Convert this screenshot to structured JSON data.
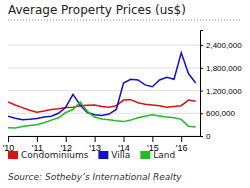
{
  "chart_data": {
    "type": "line",
    "title": "Average Property Prices (us$)",
    "source": "Source: Sotheby’s International Realty",
    "x": [
      2010.0,
      2010.25,
      2010.5,
      2010.75,
      2011.0,
      2011.25,
      2011.5,
      2011.75,
      2012.0,
      2012.25,
      2012.5,
      2012.75,
      2013.0,
      2013.25,
      2013.5,
      2013.75,
      2014.0,
      2014.25,
      2014.5,
      2014.75,
      2015.0,
      2015.25,
      2015.5,
      2015.75,
      2016.0,
      2016.25,
      2016.5
    ],
    "series": [
      {
        "name": "Condominiums",
        "color": "#dd1111",
        "values": [
          900000,
          820000,
          750000,
          680000,
          630000,
          660000,
          700000,
          720000,
          750000,
          760000,
          800000,
          810000,
          820000,
          780000,
          760000,
          800000,
          950000,
          960000,
          880000,
          840000,
          820000,
          800000,
          760000,
          780000,
          800000,
          950000,
          920000
        ]
      },
      {
        "name": "Villa",
        "color": "#1111cc",
        "values": [
          520000,
          470000,
          430000,
          440000,
          460000,
          500000,
          520000,
          600000,
          760000,
          1100000,
          820000,
          620000,
          560000,
          540000,
          580000,
          700000,
          1400000,
          1500000,
          1480000,
          1350000,
          1300000,
          1480000,
          1550000,
          1500000,
          2200000,
          1650000,
          1400000
        ]
      },
      {
        "name": "Land",
        "color": "#22bb22",
        "values": [
          220000,
          210000,
          250000,
          280000,
          300000,
          350000,
          420000,
          480000,
          620000,
          700000,
          900000,
          650000,
          500000,
          450000,
          430000,
          400000,
          380000,
          420000,
          480000,
          520000,
          560000,
          530000,
          500000,
          480000,
          440000,
          260000,
          240000
        ]
      }
    ],
    "xlim": [
      2010,
      2016.65
    ],
    "xticks": [
      {
        "value": 2010,
        "label": "'10"
      },
      {
        "value": 2011,
        "label": "'11"
      },
      {
        "value": 2012,
        "label": "'12"
      },
      {
        "value": 2013,
        "label": "'13"
      },
      {
        "value": 2014,
        "label": "'14"
      },
      {
        "value": 2015,
        "label": "'15"
      },
      {
        "value": 2016,
        "label": "'16"
      }
    ],
    "ylim": [
      0,
      2800000
    ],
    "yticks": [
      0,
      {
        "value": 600000,
        "label": "600,000"
      },
      {
        "value": 1200000,
        "label": "1,200,000"
      },
      {
        "value": 1800000,
        "label": "1,800,000"
      },
      {
        "value": 2400000,
        "label": "2,400,000"
      }
    ],
    "grid": true,
    "legend": "bottom"
  }
}
